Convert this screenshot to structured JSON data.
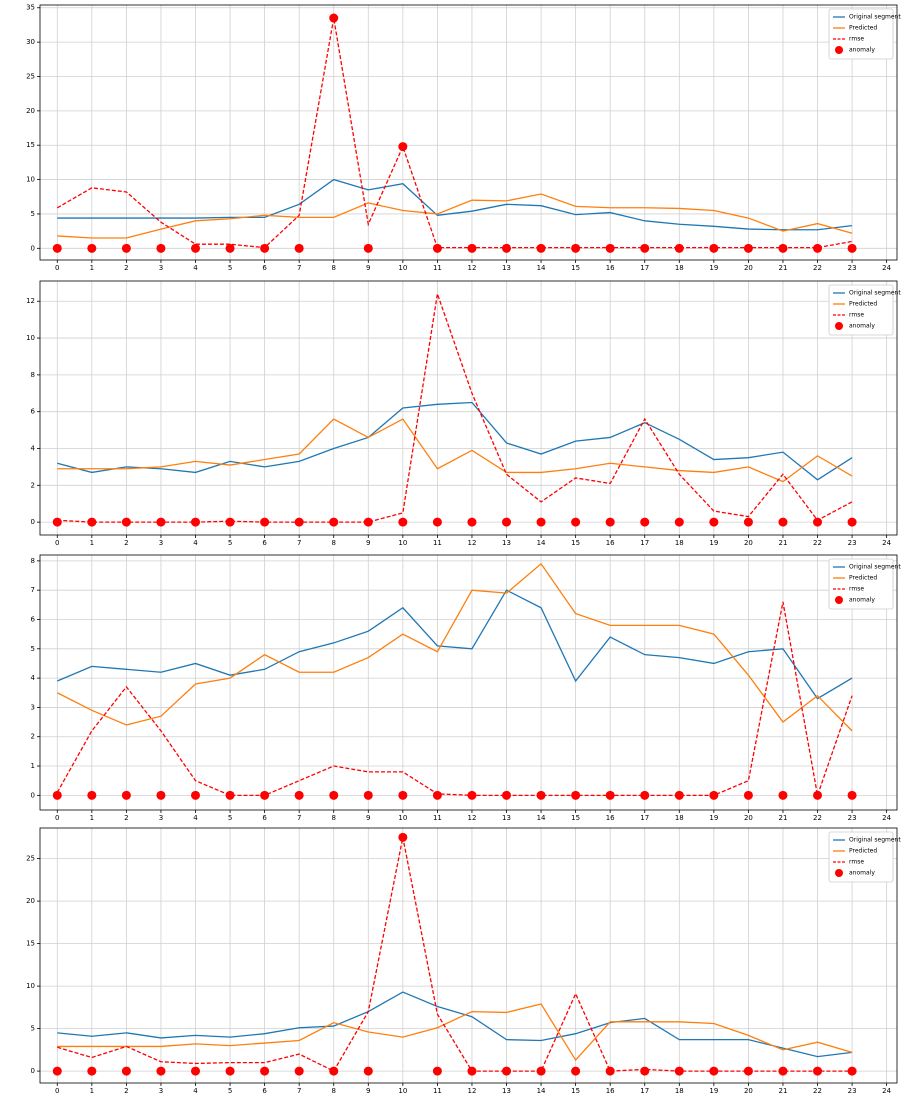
{
  "chart_data": [
    {
      "type": "line",
      "x": [
        0,
        1,
        2,
        3,
        4,
        5,
        6,
        7,
        8,
        9,
        10,
        11,
        12,
        13,
        14,
        15,
        16,
        17,
        18,
        19,
        20,
        21,
        22,
        23
      ],
      "xlim": [
        -0.5,
        24.3
      ],
      "xticks": [
        0,
        1,
        2,
        3,
        4,
        5,
        6,
        7,
        8,
        9,
        10,
        11,
        12,
        13,
        14,
        15,
        16,
        17,
        18,
        19,
        20,
        21,
        22,
        23,
        24
      ],
      "ylim": [
        -1.7,
        35.4
      ],
      "yticks": [
        0,
        5,
        10,
        15,
        20,
        25,
        30,
        35
      ],
      "grid": true,
      "legend": "upper right",
      "series": [
        {
          "name": "Original segment",
          "color": "#1f77b4",
          "style": "solid",
          "values": [
            4.4,
            4.4,
            4.4,
            4.4,
            4.4,
            4.5,
            4.5,
            6.4,
            10,
            8.5,
            9.4,
            4.8,
            5.4,
            6.4,
            6.2,
            4.9,
            5.2,
            4.0,
            3.5,
            3.2,
            2.8,
            2.7,
            2.7,
            3.3
          ]
        },
        {
          "name": "Predicted",
          "color": "#ff7f0e",
          "style": "solid",
          "values": [
            1.8,
            1.5,
            1.5,
            2.8,
            4.0,
            4.3,
            4.8,
            4.5,
            4.5,
            6.6,
            5.5,
            5.0,
            7.0,
            6.9,
            7.9,
            6.1,
            5.9,
            5.9,
            5.8,
            5.5,
            4.4,
            2.5,
            3.6,
            2.2
          ]
        },
        {
          "name": "rmse",
          "color": "#ff0000",
          "style": "dashed",
          "values": [
            5.9,
            8.8,
            8.2,
            3.8,
            0.6,
            0.6,
            0.1,
            4.8,
            33.5,
            3.5,
            14.8,
            0.1,
            0.1,
            0.1,
            0.1,
            0.1,
            0.1,
            0.1,
            0.1,
            0.1,
            0.1,
            0.1,
            0.1,
            1.0
          ]
        },
        {
          "name": "anomaly",
          "color": "#ff0000",
          "style": "markers",
          "values": [
            0,
            0,
            0,
            0,
            0,
            0,
            0,
            0,
            33.5,
            0,
            14.8,
            0,
            0,
            0,
            0,
            0,
            0,
            0,
            0,
            0,
            0,
            0,
            0,
            0
          ]
        }
      ]
    },
    {
      "type": "line",
      "x": [
        0,
        1,
        2,
        3,
        4,
        5,
        6,
        7,
        8,
        9,
        10,
        11,
        12,
        13,
        14,
        15,
        16,
        17,
        18,
        19,
        20,
        21,
        22,
        23
      ],
      "xlim": [
        -0.5,
        24.3
      ],
      "xticks": [
        0,
        1,
        2,
        3,
        4,
        5,
        6,
        7,
        8,
        9,
        10,
        11,
        12,
        13,
        14,
        15,
        16,
        17,
        18,
        19,
        20,
        21,
        22,
        23,
        24
      ],
      "ylim": [
        -0.7,
        13.1
      ],
      "yticks": [
        0,
        2,
        4,
        6,
        8,
        10,
        12
      ],
      "grid": true,
      "legend": "upper right",
      "series": [
        {
          "name": "Original segment",
          "color": "#1f77b4",
          "style": "solid",
          "values": [
            3.2,
            2.7,
            3.0,
            2.9,
            2.7,
            3.3,
            3.0,
            3.3,
            4.0,
            4.6,
            6.2,
            6.4,
            6.5,
            4.3,
            3.7,
            4.4,
            4.6,
            5.4,
            4.5,
            3.4,
            3.5,
            3.8,
            2.3,
            3.5
          ]
        },
        {
          "name": "Predicted",
          "color": "#ff7f0e",
          "style": "solid",
          "values": [
            2.9,
            2.9,
            2.9,
            3.0,
            3.3,
            3.1,
            3.4,
            3.7,
            5.6,
            4.6,
            5.6,
            2.9,
            3.9,
            2.7,
            2.7,
            2.9,
            3.2,
            3.0,
            2.8,
            2.7,
            3.0,
            2.2,
            3.6,
            2.5
          ]
        },
        {
          "name": "rmse",
          "color": "#ff0000",
          "style": "dashed",
          "values": [
            0.1,
            0,
            0,
            0,
            0,
            0.05,
            0,
            0,
            0,
            0,
            0.5,
            12.4,
            7.0,
            2.6,
            1.1,
            2.4,
            2.1,
            5.6,
            2.6,
            0.6,
            0.3,
            2.6,
            0.1,
            1.1
          ]
        },
        {
          "name": "anomaly",
          "color": "#ff0000",
          "style": "markers",
          "values": [
            0,
            0,
            0,
            0,
            0,
            0,
            0,
            0,
            0,
            0,
            0,
            0,
            0,
            0,
            0,
            0,
            0,
            0,
            0,
            0,
            0,
            0,
            0,
            0
          ]
        }
      ]
    },
    {
      "type": "line",
      "x": [
        0,
        1,
        2,
        3,
        4,
        5,
        6,
        7,
        8,
        9,
        10,
        11,
        12,
        13,
        14,
        15,
        16,
        17,
        18,
        19,
        20,
        21,
        22,
        23
      ],
      "xlim": [
        -0.5,
        24.3
      ],
      "xticks": [
        0,
        1,
        2,
        3,
        4,
        5,
        6,
        7,
        8,
        9,
        10,
        11,
        12,
        13,
        14,
        15,
        16,
        17,
        18,
        19,
        20,
        21,
        22,
        23,
        24
      ],
      "ylim": [
        -0.5,
        8.2
      ],
      "yticks": [
        0,
        1,
        2,
        3,
        4,
        5,
        6,
        7,
        8
      ],
      "grid": true,
      "legend": "upper right",
      "series": [
        {
          "name": "Original segment",
          "color": "#1f77b4",
          "style": "solid",
          "values": [
            3.9,
            4.4,
            4.3,
            4.2,
            4.5,
            4.1,
            4.3,
            4.9,
            5.2,
            5.6,
            6.4,
            5.1,
            5.0,
            7.0,
            6.4,
            3.9,
            5.4,
            4.8,
            4.7,
            4.5,
            4.9,
            5.0,
            3.3,
            4.0
          ]
        },
        {
          "name": "Predicted",
          "color": "#ff7f0e",
          "style": "solid",
          "values": [
            3.5,
            2.9,
            2.4,
            2.7,
            3.8,
            4.0,
            4.8,
            4.2,
            4.2,
            4.7,
            5.5,
            4.9,
            7.0,
            6.9,
            7.9,
            6.2,
            5.8,
            5.8,
            5.8,
            5.5,
            4.1,
            2.5,
            3.4,
            2.2
          ]
        },
        {
          "name": "rmse",
          "color": "#ff0000",
          "style": "dashed",
          "values": [
            0.1,
            2.2,
            3.7,
            2.2,
            0.5,
            0,
            0,
            0.5,
            1.0,
            0.8,
            0.8,
            0.05,
            0,
            0,
            0,
            0,
            0,
            0,
            0,
            0,
            0.5,
            6.6,
            0,
            3.4
          ]
        },
        {
          "name": "anomaly",
          "color": "#ff0000",
          "style": "markers",
          "values": [
            0,
            0,
            0,
            0,
            0,
            0,
            0,
            0,
            0,
            0,
            0,
            0,
            0,
            0,
            0,
            0,
            0,
            0,
            0,
            0,
            0,
            0,
            0,
            0
          ]
        }
      ]
    },
    {
      "type": "line",
      "x": [
        0,
        1,
        2,
        3,
        4,
        5,
        6,
        7,
        8,
        9,
        10,
        11,
        12,
        13,
        14,
        15,
        16,
        17,
        18,
        19,
        20,
        21,
        22,
        23
      ],
      "xlim": [
        -0.5,
        24.3
      ],
      "xticks": [
        0,
        1,
        2,
        3,
        4,
        5,
        6,
        7,
        8,
        9,
        10,
        11,
        12,
        13,
        14,
        15,
        16,
        17,
        18,
        19,
        20,
        21,
        22,
        23,
        24
      ],
      "ylim": [
        -1.4,
        28.6
      ],
      "yticks": [
        0,
        5,
        10,
        15,
        20,
        25
      ],
      "grid": true,
      "legend": "upper right",
      "series": [
        {
          "name": "Original segment",
          "color": "#1f77b4",
          "style": "solid",
          "values": [
            4.5,
            4.1,
            4.5,
            3.9,
            4.2,
            4.0,
            4.4,
            5.1,
            5.3,
            7.0,
            9.3,
            7.6,
            6.4,
            3.7,
            3.6,
            4.4,
            5.7,
            6.2,
            3.7,
            3.7,
            3.7,
            2.7,
            1.7,
            2.2
          ]
        },
        {
          "name": "Predicted",
          "color": "#ff7f0e",
          "style": "solid",
          "values": [
            2.9,
            2.9,
            2.9,
            2.9,
            3.2,
            3.0,
            3.3,
            3.6,
            5.7,
            4.6,
            4.0,
            5.1,
            7.0,
            6.9,
            7.9,
            1.3,
            5.8,
            5.8,
            5.8,
            5.6,
            4.2,
            2.5,
            3.4,
            2.2
          ]
        },
        {
          "name": "rmse",
          "color": "#ff0000",
          "style": "dashed",
          "values": [
            2.8,
            1.6,
            2.9,
            1.1,
            0.9,
            1.0,
            1.0,
            2.0,
            0,
            7.0,
            27.5,
            6.7,
            0,
            0,
            0,
            9.1,
            0,
            0.2,
            0,
            0,
            0,
            0,
            0,
            0
          ]
        },
        {
          "name": "anomaly",
          "color": "#ff0000",
          "style": "markers",
          "values": [
            0,
            0,
            0,
            0,
            0,
            0,
            0,
            0,
            0,
            0,
            27.5,
            0,
            0,
            0,
            0,
            0,
            0,
            0,
            0,
            0,
            0,
            0,
            0,
            0
          ]
        }
      ]
    }
  ]
}
